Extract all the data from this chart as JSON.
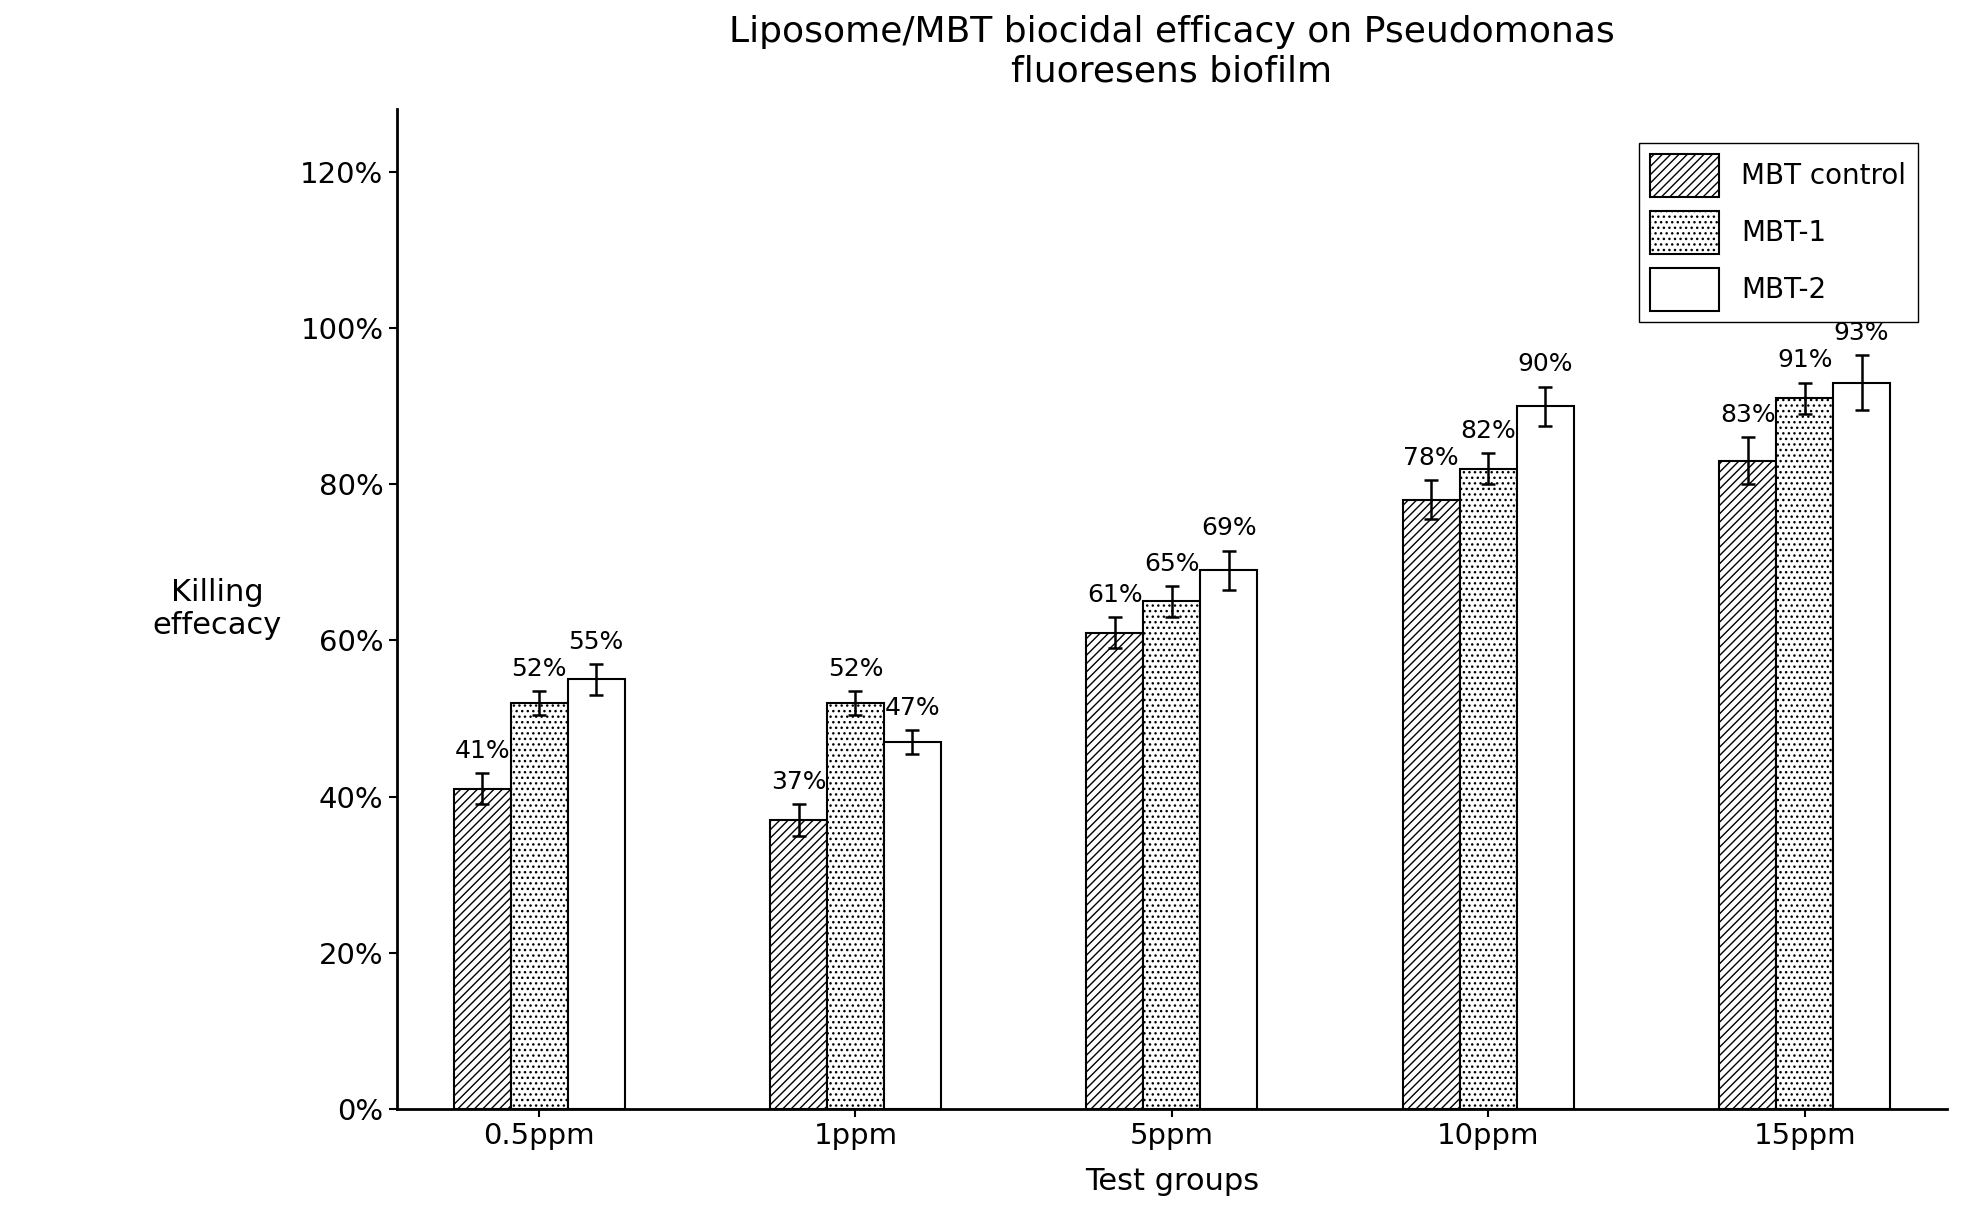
{
  "title": "Liposome/MBT biocidal efficacy on Pseudomonas\nfluoresens biofilm",
  "xlabel": "Test groups",
  "ylabel": "Killing\neffecacy",
  "categories": [
    "0.5ppm",
    "1ppm",
    "5ppm",
    "10ppm",
    "15ppm"
  ],
  "series": {
    "MBT control": [
      0.41,
      0.37,
      0.61,
      0.78,
      0.83
    ],
    "MBT-1": [
      0.52,
      0.52,
      0.65,
      0.82,
      0.91
    ],
    "MBT-2": [
      0.55,
      0.47,
      0.69,
      0.9,
      0.93
    ]
  },
  "errors": {
    "MBT control": [
      0.02,
      0.02,
      0.02,
      0.025,
      0.03
    ],
    "MBT-1": [
      0.015,
      0.015,
      0.02,
      0.02,
      0.02
    ],
    "MBT-2": [
      0.02,
      0.015,
      0.025,
      0.025,
      0.035
    ]
  },
  "labels": {
    "MBT control": [
      "41%",
      "37%",
      "61%",
      "78%",
      "83%"
    ],
    "MBT-1": [
      "52%",
      "52%",
      "65%",
      "82%",
      "91%"
    ],
    "MBT-2": [
      "55%",
      "47%",
      "69%",
      "90%",
      "93%"
    ]
  },
  "bar_width": 0.18,
  "ylim": [
    0,
    1.28
  ],
  "yticks": [
    0,
    0.2,
    0.4,
    0.6,
    0.8,
    1.0,
    1.2
  ],
  "ytick_labels": [
    "0%",
    "20%",
    "40%",
    "60%",
    "80%",
    "100%",
    "120%"
  ],
  "figsize": [
    19.62,
    12.11
  ],
  "dpi": 100,
  "title_fontsize": 26,
  "axis_label_fontsize": 22,
  "tick_fontsize": 21,
  "bar_label_fontsize": 18,
  "legend_fontsize": 20,
  "background_color": "#ffffff"
}
